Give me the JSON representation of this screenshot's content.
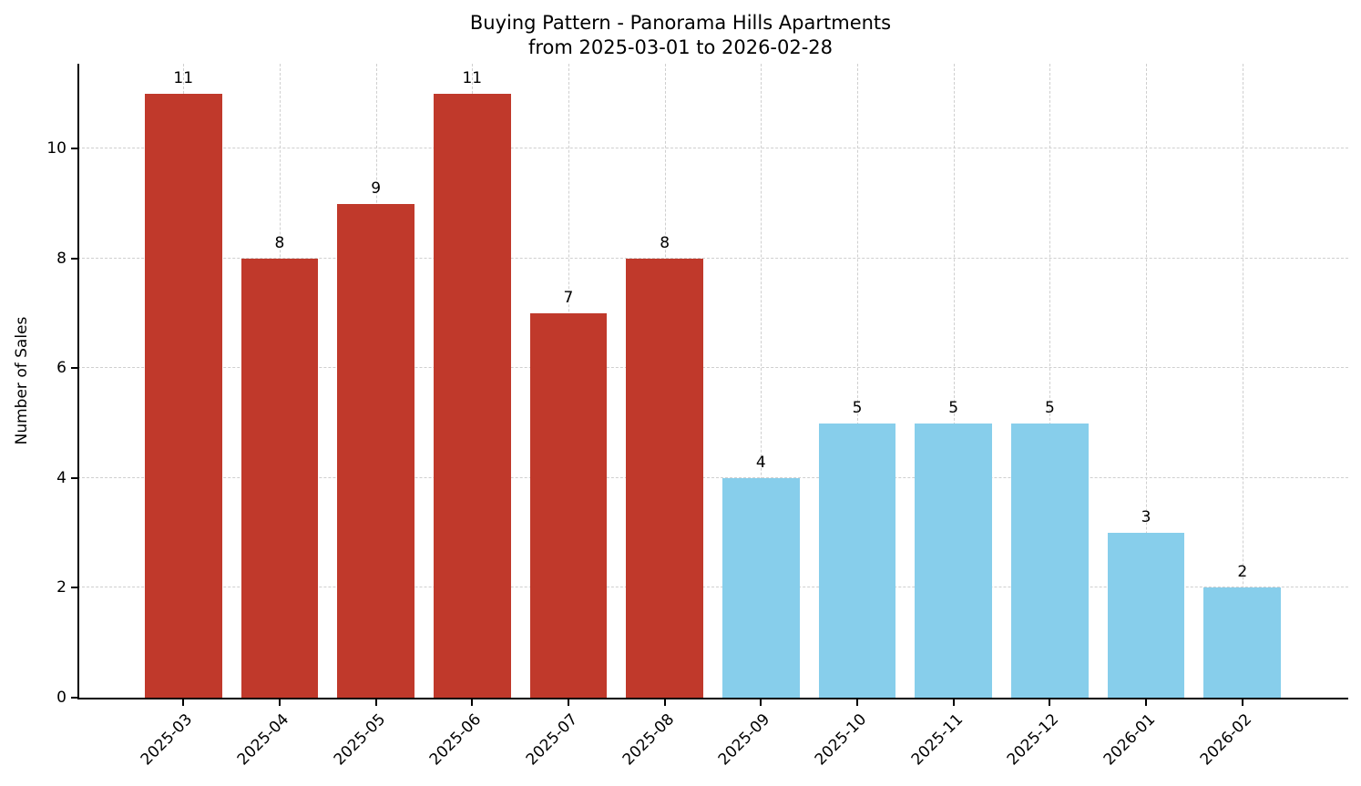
{
  "chart": {
    "title_line1": "Buying Pattern - Panorama Hills Apartments",
    "title_line2": "from 2025-03-01 to 2026-02-28",
    "ylabel": "Number of Sales"
  },
  "chart_data": {
    "type": "bar",
    "title": "Buying Pattern - Panorama Hills Apartments\nfrom 2025-03-01 to 2026-02-28",
    "xlabel": "",
    "ylabel": "Number of Sales",
    "categories": [
      "2025-03",
      "2025-04",
      "2025-05",
      "2025-06",
      "2025-07",
      "2025-08",
      "2025-09",
      "2025-10",
      "2025-11",
      "2025-12",
      "2026-01",
      "2026-02"
    ],
    "values": [
      11,
      8,
      9,
      11,
      7,
      8,
      4,
      5,
      5,
      5,
      3,
      2
    ],
    "bar_colors": [
      "#c0392b",
      "#c0392b",
      "#c0392b",
      "#c0392b",
      "#c0392b",
      "#c0392b",
      "#87CEEB",
      "#87CEEB",
      "#87CEEB",
      "#87CEEB",
      "#87CEEB",
      "#87CEEB"
    ],
    "ylim": [
      0,
      11.55
    ],
    "yticks": [
      0,
      2,
      4,
      6,
      8,
      10
    ],
    "grid": true,
    "grid_style": "dashed",
    "legend": "none",
    "bar_width_fraction": 0.8
  }
}
